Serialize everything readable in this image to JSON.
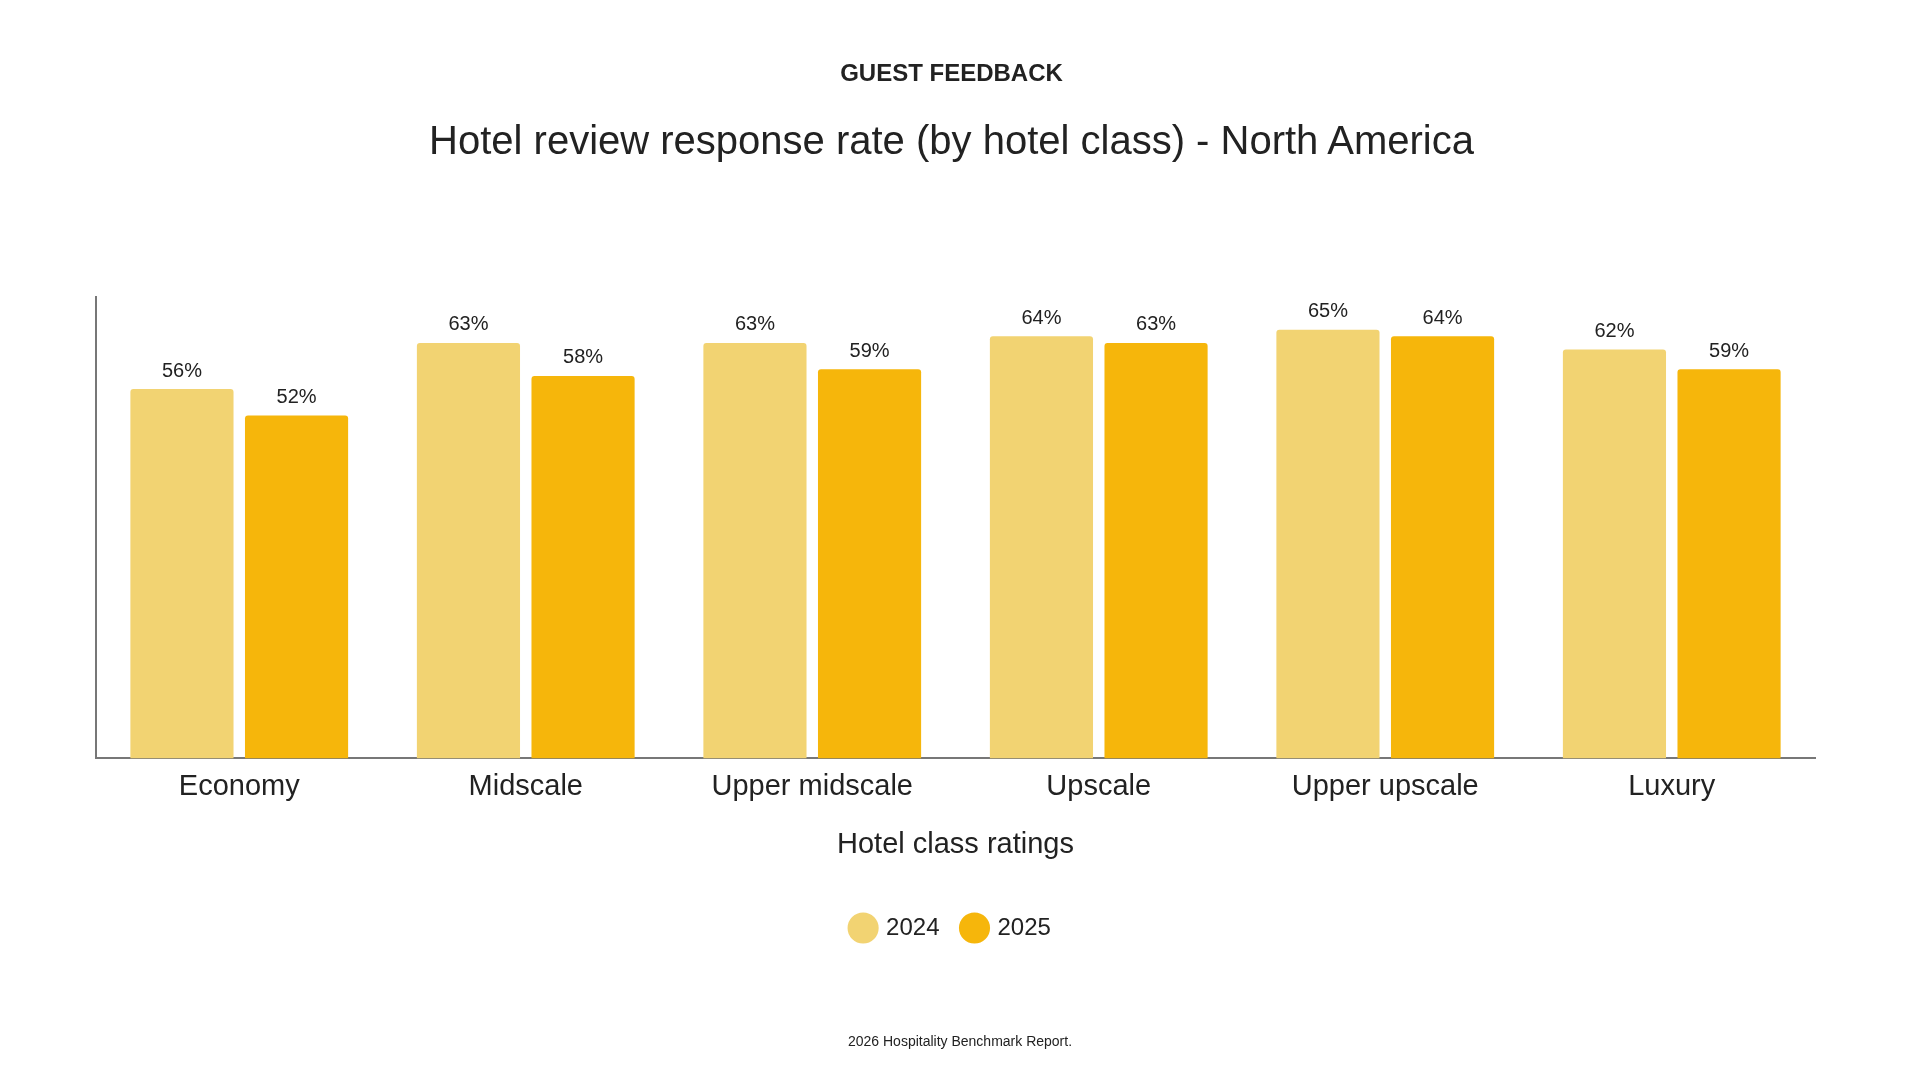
{
  "chart_data": {
    "type": "bar",
    "title": "GUEST FEEDBACK",
    "subtitle": "Hotel review response rate (by hotel class) - North America",
    "xlabel": "Hotel class ratings",
    "categories": [
      "Economy",
      "Midscale",
      "Upper midscale",
      "Upscale",
      "Upper upscale",
      "Luxury"
    ],
    "series": [
      {
        "name": "2024",
        "color": "#f2d372",
        "values": [
          56,
          63,
          63,
          64,
          65,
          62
        ],
        "value_labels": [
          "56%",
          "63%",
          "63%",
          "64%",
          "65%",
          "62%"
        ]
      },
      {
        "name": "2025",
        "color": "#f6b60b",
        "values": [
          52,
          58,
          59,
          63,
          64,
          59
        ],
        "value_labels": [
          "52%",
          "58%",
          "59%",
          "63%",
          "64%",
          "59%"
        ]
      }
    ],
    "tick_labels": "x",
    "grid": false,
    "legend": "bottom",
    "annotations": [
      "2026 Hospitality Benchmark Report."
    ]
  }
}
